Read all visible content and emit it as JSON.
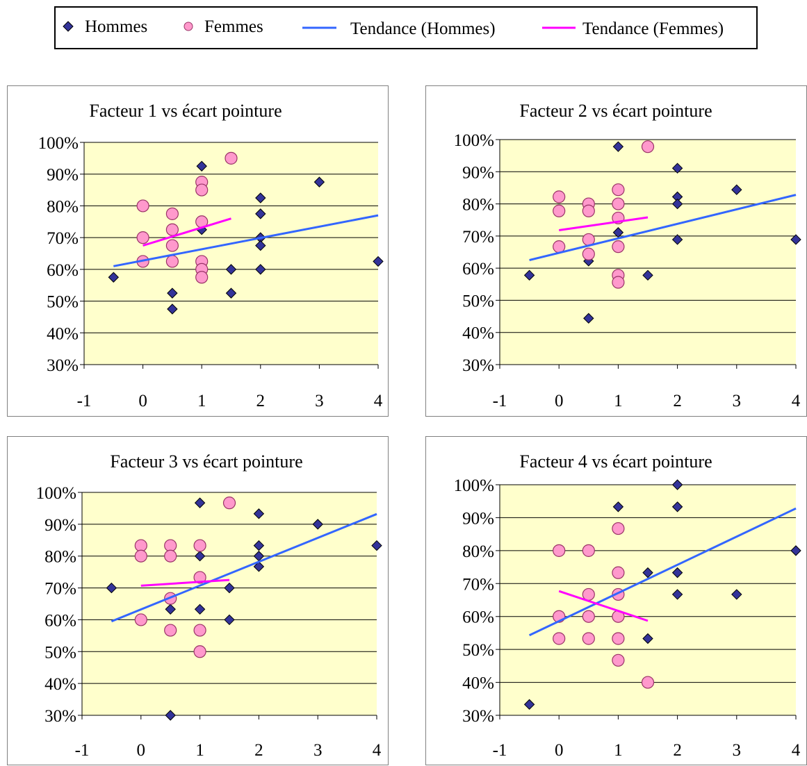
{
  "legend": {
    "hommes": "Hommes",
    "femmes": "Femmes",
    "tendance_hommes": "Tendance (Hommes)",
    "tendance_femmes": "Tendance (Femmes)"
  },
  "colors": {
    "plot_bg": "#FFFFCC",
    "hommes_marker": "#333399",
    "femmes_marker": "#FF99CC",
    "femmes_marker_edge": "#993366",
    "trend_hommes": "#3366FF",
    "trend_femmes": "#FF00FF",
    "gridline": "#000000"
  },
  "chart_data": [
    {
      "type": "scatter",
      "title": "Facteur 1 vs écart pointure",
      "xlim": [
        -1,
        4
      ],
      "ylim": [
        0.3,
        1.0
      ],
      "xticks": [
        "-1",
        "0",
        "1",
        "2",
        "3",
        "4"
      ],
      "yticks": [
        "30%",
        "40%",
        "50%",
        "60%",
        "70%",
        "80%",
        "90%",
        "100%"
      ],
      "grid": "horizontal",
      "series": [
        {
          "name": "Hommes",
          "marker": "diamond",
          "points": [
            [
              -0.5,
              0.575
            ],
            [
              0.5,
              0.525
            ],
            [
              0.5,
              0.475
            ],
            [
              1,
              0.925
            ],
            [
              1,
              0.725
            ],
            [
              1.5,
              0.6
            ],
            [
              1.5,
              0.525
            ],
            [
              2,
              0.825
            ],
            [
              2,
              0.775
            ],
            [
              2,
              0.7
            ],
            [
              2,
              0.675
            ],
            [
              2,
              0.6
            ],
            [
              3,
              0.875
            ],
            [
              4,
              0.625
            ]
          ]
        },
        {
          "name": "Femmes",
          "marker": "circle",
          "points": [
            [
              0,
              0.8
            ],
            [
              0,
              0.7
            ],
            [
              0,
              0.625
            ],
            [
              0.5,
              0.775
            ],
            [
              0.5,
              0.725
            ],
            [
              0.5,
              0.675
            ],
            [
              0.5,
              0.625
            ],
            [
              1,
              0.875
            ],
            [
              1,
              0.85
            ],
            [
              1,
              0.75
            ],
            [
              1,
              0.625
            ],
            [
              1,
              0.6
            ],
            [
              1,
              0.575
            ],
            [
              1.5,
              0.95
            ]
          ]
        },
        {
          "name": "Tendance (Hommes)",
          "line": [
            [
              -0.5,
              0.61
            ],
            [
              4,
              0.77
            ]
          ]
        },
        {
          "name": "Tendance (Femmes)",
          "line": [
            [
              0,
              0.675
            ],
            [
              1.5,
              0.76
            ]
          ]
        }
      ]
    },
    {
      "type": "scatter",
      "title": "Facteur 2 vs écart pointure",
      "xlim": [
        -1,
        4
      ],
      "ylim": [
        0.3,
        1.0
      ],
      "xticks": [
        "-1",
        "0",
        "1",
        "2",
        "3",
        "4"
      ],
      "yticks": [
        "30%",
        "40%",
        "50%",
        "60%",
        "70%",
        "80%",
        "90%",
        "100%"
      ],
      "grid": "horizontal",
      "series": [
        {
          "name": "Hommes",
          "marker": "diamond",
          "points": [
            [
              -0.5,
              0.578
            ],
            [
              0.5,
              0.622
            ],
            [
              0.5,
              0.444
            ],
            [
              1,
              0.978
            ],
            [
              1,
              0.711
            ],
            [
              1.5,
              0.578
            ],
            [
              2,
              0.911
            ],
            [
              2,
              0.822
            ],
            [
              2,
              0.8
            ],
            [
              2,
              0.689
            ],
            [
              3,
              0.844
            ],
            [
              4,
              0.689
            ]
          ]
        },
        {
          "name": "Femmes",
          "marker": "circle",
          "points": [
            [
              0,
              0.822
            ],
            [
              0,
              0.778
            ],
            [
              0,
              0.667
            ],
            [
              0.5,
              0.8
            ],
            [
              0.5,
              0.778
            ],
            [
              0.5,
              0.689
            ],
            [
              0.5,
              0.644
            ],
            [
              1,
              0.844
            ],
            [
              1,
              0.8
            ],
            [
              1,
              0.756
            ],
            [
              1,
              0.667
            ],
            [
              1,
              0.578
            ],
            [
              1,
              0.556
            ],
            [
              1.5,
              0.978
            ]
          ]
        },
        {
          "name": "Tendance (Hommes)",
          "line": [
            [
              -0.5,
              0.625
            ],
            [
              4,
              0.828
            ]
          ]
        },
        {
          "name": "Tendance (Femmes)",
          "line": [
            [
              0,
              0.718
            ],
            [
              1.5,
              0.758
            ]
          ]
        }
      ]
    },
    {
      "type": "scatter",
      "title": "Facteur 3 vs écart pointure",
      "xlim": [
        -1,
        4
      ],
      "ylim": [
        0.3,
        1.0
      ],
      "xticks": [
        "-1",
        "0",
        "1",
        "2",
        "3",
        "4"
      ],
      "yticks": [
        "30%",
        "40%",
        "50%",
        "60%",
        "70%",
        "80%",
        "90%",
        "100%"
      ],
      "grid": "horizontal",
      "series": [
        {
          "name": "Hommes",
          "marker": "diamond",
          "points": [
            [
              -0.5,
              0.7
            ],
            [
              0.5,
              0.633
            ],
            [
              0.5,
              0.3
            ],
            [
              1,
              0.967
            ],
            [
              1,
              0.8
            ],
            [
              1,
              0.633
            ],
            [
              1.5,
              0.7
            ],
            [
              1.5,
              0.6
            ],
            [
              2,
              0.933
            ],
            [
              2,
              0.833
            ],
            [
              2,
              0.8
            ],
            [
              2,
              0.767
            ],
            [
              3,
              0.9
            ],
            [
              4,
              0.833
            ]
          ]
        },
        {
          "name": "Femmes",
          "marker": "circle",
          "points": [
            [
              0,
              0.833
            ],
            [
              0,
              0.8
            ],
            [
              0,
              0.6
            ],
            [
              0.5,
              0.833
            ],
            [
              0.5,
              0.8
            ],
            [
              0.5,
              0.667
            ],
            [
              0.5,
              0.567
            ],
            [
              1,
              0.833
            ],
            [
              1,
              0.733
            ],
            [
              1,
              0.567
            ],
            [
              1,
              0.5
            ],
            [
              1.5,
              0.967
            ]
          ]
        },
        {
          "name": "Tendance (Hommes)",
          "line": [
            [
              -0.5,
              0.595
            ],
            [
              4,
              0.932
            ]
          ]
        },
        {
          "name": "Tendance (Femmes)",
          "line": [
            [
              0,
              0.707
            ],
            [
              1.5,
              0.725
            ]
          ]
        }
      ]
    },
    {
      "type": "scatter",
      "title": "Facteur 4 vs écart pointure",
      "xlim": [
        -1,
        4
      ],
      "ylim": [
        0.3,
        1.0
      ],
      "xticks": [
        "-1",
        "0",
        "1",
        "2",
        "3",
        "4"
      ],
      "yticks": [
        "30%",
        "40%",
        "50%",
        "60%",
        "70%",
        "80%",
        "90%",
        "100%"
      ],
      "grid": "horizontal",
      "series": [
        {
          "name": "Hommes",
          "marker": "diamond",
          "points": [
            [
              -0.5,
              0.333
            ],
            [
              1,
              0.933
            ],
            [
              1,
              0.667
            ],
            [
              1.5,
              0.733
            ],
            [
              1.5,
              0.533
            ],
            [
              2,
              1.0
            ],
            [
              2,
              0.933
            ],
            [
              2,
              0.733
            ],
            [
              2,
              0.667
            ],
            [
              3,
              0.667
            ],
            [
              4,
              0.8
            ]
          ]
        },
        {
          "name": "Femmes",
          "marker": "circle",
          "points": [
            [
              0,
              0.8
            ],
            [
              0,
              0.6
            ],
            [
              0,
              0.533
            ],
            [
              0.5,
              0.8
            ],
            [
              0.5,
              0.667
            ],
            [
              0.5,
              0.6
            ],
            [
              0.5,
              0.533
            ],
            [
              1,
              0.867
            ],
            [
              1,
              0.733
            ],
            [
              1,
              0.667
            ],
            [
              1,
              0.6
            ],
            [
              1,
              0.533
            ],
            [
              1,
              0.467
            ],
            [
              1.5,
              0.4
            ]
          ]
        },
        {
          "name": "Tendance (Hommes)",
          "line": [
            [
              -0.5,
              0.543
            ],
            [
              4,
              0.928
            ]
          ]
        },
        {
          "name": "Tendance (Femmes)",
          "line": [
            [
              0,
              0.677
            ],
            [
              1.5,
              0.587
            ]
          ]
        }
      ]
    }
  ]
}
